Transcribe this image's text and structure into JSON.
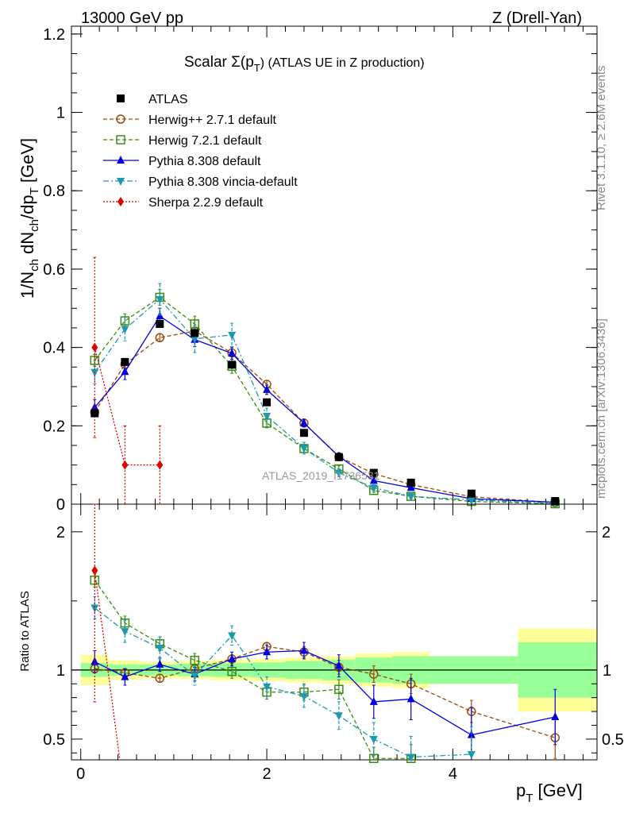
{
  "header": {
    "left": "13000 GeV pp",
    "right": "Z (Drell-Yan)"
  },
  "side_text": {
    "right_top": "Rivet 3.1.10, ≥ 2.6M events",
    "right_bottom": "mcplots.cern.ch [arXiv:1306.3436]"
  },
  "watermark": "ATLAS_2019_I1736531",
  "chart_data": [
    {
      "type": "line",
      "panel": "main",
      "title": "Scalar Σ(p_T) (ATLAS UE in Z production)",
      "title_main": "Scalar Σ(p",
      "title_sub": "T",
      "title_rest": ") (ATLAS UE in Z production)",
      "xlabel": "p_T [GeV]",
      "ylabel": "1/N_ch dN_ch/dp_T [GeV]",
      "xlim": [
        -0.1,
        5.55
      ],
      "ylim": [
        0,
        1.22
      ],
      "yticks": [
        0,
        0.2,
        0.4,
        0.6,
        0.8,
        1,
        1.2
      ],
      "ytick_labels": [
        "0",
        "0.2",
        "0.4",
        "0.6",
        "0.8",
        "1",
        "1.2"
      ],
      "legend_position": "top-left",
      "x": [
        0.15,
        0.475,
        0.85,
        1.225,
        1.625,
        2.0,
        2.4,
        2.775,
        3.15,
        3.55,
        4.2,
        5.1
      ],
      "series": [
        {
          "name": "ATLAS",
          "color": "#000000",
          "marker": "square-filled",
          "line": "none",
          "values": [
            0.232,
            0.363,
            0.46,
            0.437,
            0.356,
            0.26,
            0.182,
            0.12,
            0.08,
            0.055,
            0.027,
            0.008
          ],
          "errors": [
            0.005,
            0.005,
            0.005,
            0.005,
            0.005,
            0.004,
            0.003,
            0.003,
            0.002,
            0.002,
            0.001,
            0.001
          ]
        },
        {
          "name": "Herwig++ 2.7.1 default",
          "color": "#9a4a06",
          "marker": "circle-open",
          "line": "dashed",
          "values": [
            0.235,
            0.357,
            0.425,
            0.442,
            0.386,
            0.306,
            0.207,
            0.121,
            0.078,
            0.05,
            0.019,
            0.004
          ],
          "errors": [
            0.01,
            0.01,
            0.01,
            0.01,
            0.01,
            0.01,
            0.008,
            0.006,
            0.005,
            0.004,
            0.002,
            0.001
          ]
        },
        {
          "name": "Herwig 7.2.1 default",
          "color": "#3a8c14",
          "marker": "square-open",
          "line": "dashed",
          "values": [
            0.367,
            0.468,
            0.528,
            0.46,
            0.352,
            0.207,
            0.142,
            0.09,
            0.035,
            0.02,
            0.007,
            0.001
          ],
          "errors": [
            0.015,
            0.018,
            0.02,
            0.02,
            0.018,
            0.012,
            0.01,
            0.008,
            0.005,
            0.004,
            0.002,
            0.001
          ]
        },
        {
          "name": "Pythia 8.308 default",
          "color": "#0000dd",
          "marker": "triangle-up",
          "line": "solid",
          "values": [
            0.247,
            0.338,
            0.48,
            0.42,
            0.385,
            0.292,
            0.207,
            0.122,
            0.06,
            0.042,
            0.014,
            0.005
          ],
          "errors": [
            0.02,
            0.02,
            0.02,
            0.018,
            0.015,
            0.012,
            0.01,
            0.008,
            0.006,
            0.004,
            0.003,
            0.001
          ]
        },
        {
          "name": "Pythia 8.308 vincia-default",
          "color": "#1a9aaf",
          "marker": "triangle-down",
          "line": "dashdot",
          "values": [
            0.337,
            0.447,
            0.523,
            0.422,
            0.432,
            0.225,
            0.143,
            0.08,
            0.042,
            0.02,
            0.011,
            0.002
          ],
          "errors": [
            0.03,
            0.03,
            0.04,
            0.035,
            0.03,
            0.02,
            0.015,
            0.01,
            0.008,
            0.006,
            0.004,
            0.002
          ]
        },
        {
          "name": "Sherpa 2.2.9 default",
          "color": "#e00000",
          "marker": "diamond-filled",
          "line": "dotted",
          "x": [
            0.15,
            0.475,
            0.85
          ],
          "values": [
            0.4,
            0.1,
            0.1
          ],
          "errors": [
            0.23,
            0.1,
            0.1
          ]
        }
      ]
    },
    {
      "type": "line",
      "panel": "ratio",
      "xlabel": "p_T [GeV]",
      "ylabel": "Ratio to ATLAS",
      "xlim": [
        -0.1,
        5.55
      ],
      "ylim": [
        0.35,
        2.2
      ],
      "yticks": [
        0.5,
        1,
        2
      ],
      "ytick_labels": [
        "0.5",
        "1",
        "2"
      ],
      "xticks": [
        0,
        2,
        4
      ],
      "xtick_labels": [
        "0",
        "2",
        "4"
      ],
      "reference_line": 1,
      "bands": {
        "edges": [
          0,
          0.3,
          0.65,
          1.05,
          1.4,
          1.85,
          2.2,
          2.6,
          2.95,
          3.35,
          3.75,
          4.7,
          5.55
        ],
        "green_halfwidth": [
          0.05,
          0.04,
          0.04,
          0.045,
          0.05,
          0.055,
          0.065,
          0.075,
          0.09,
          0.1,
          0.1,
          0.2
        ],
        "yellow_halfwidth": [
          0.11,
          0.07,
          0.06,
          0.065,
          0.075,
          0.08,
          0.09,
          0.1,
          0.12,
          0.13,
          0.1,
          0.3
        ]
      },
      "x": [
        0.15,
        0.475,
        0.85,
        1.225,
        1.625,
        2.0,
        2.4,
        2.775,
        3.15,
        3.55,
        4.2,
        5.1
      ],
      "series": [
        {
          "name": "Herwig++ 2.7.1 default",
          "color": "#9a4a06",
          "marker": "circle-open",
          "line": "dashed",
          "values": [
            1.01,
            0.98,
            0.94,
            1.01,
            1.08,
            1.17,
            1.13,
            1.02,
            0.97,
            0.9,
            0.7,
            0.51
          ],
          "errors": [
            0.03,
            0.03,
            0.03,
            0.03,
            0.03,
            0.03,
            0.04,
            0.05,
            0.06,
            0.07,
            0.08,
            0.15
          ]
        },
        {
          "name": "Herwig 7.2.1 default",
          "color": "#3a8c14",
          "marker": "square-open",
          "line": "dashed",
          "values": [
            1.65,
            1.34,
            1.19,
            1.07,
            0.99,
            0.84,
            0.84,
            0.86,
            0.36,
            0.36,
            null,
            null
          ],
          "errors": [
            0.05,
            0.05,
            0.05,
            0.05,
            0.05,
            0.05,
            0.06,
            0.07,
            0.08,
            0.1,
            null,
            null
          ]
        },
        {
          "name": "Pythia 8.308 default",
          "color": "#0000dd",
          "marker": "triangle-up",
          "line": "solid",
          "values": [
            1.06,
            0.95,
            1.04,
            0.97,
            1.08,
            1.13,
            1.14,
            1.03,
            0.77,
            0.79,
            0.53,
            0.66
          ],
          "errors": [
            0.08,
            0.06,
            0.05,
            0.05,
            0.05,
            0.05,
            0.06,
            0.08,
            0.12,
            0.15,
            0.2,
            0.2
          ]
        },
        {
          "name": "Pythia 8.308 vincia-default",
          "color": "#1a9aaf",
          "marker": "triangle-down",
          "line": "dashdot",
          "values": [
            1.45,
            1.28,
            1.16,
            0.96,
            1.25,
            0.88,
            0.81,
            0.67,
            0.5,
            0.37,
            0.39,
            null
          ],
          "errors": [
            0.08,
            0.08,
            0.08,
            0.07,
            0.07,
            0.07,
            0.08,
            0.1,
            0.12,
            0.15,
            0.2,
            null
          ]
        },
        {
          "name": "Sherpa 2.2.9 default",
          "color": "#e00000",
          "marker": "diamond-filled",
          "line": "dotted",
          "x": [
            0.15
          ],
          "values": [
            1.72
          ],
          "errors": [
            0.95
          ]
        }
      ]
    }
  ]
}
